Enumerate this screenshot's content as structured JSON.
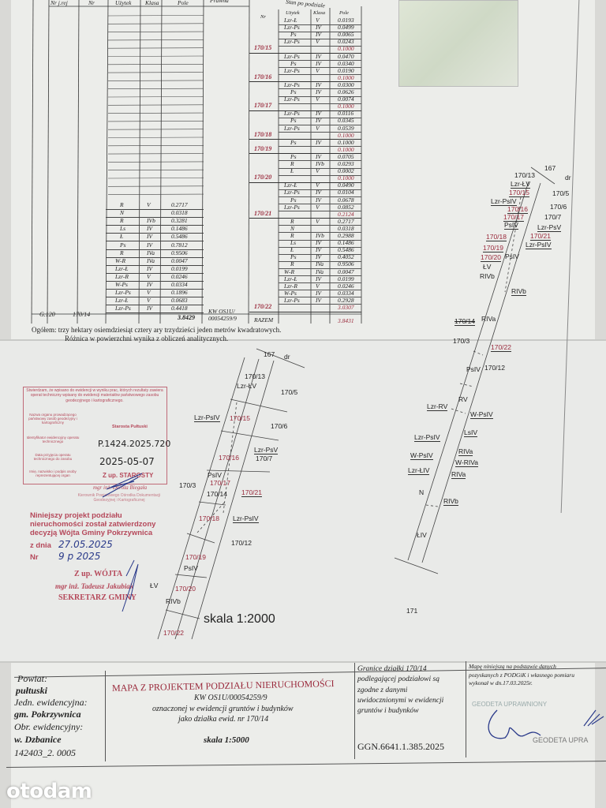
{
  "table": {
    "headers_left": [
      "Nr j.rej",
      "Nr",
      "Użytek",
      "Klasa",
      "Pole",
      "Prawna"
    ],
    "right_title": "Stan po podziale",
    "headers_right": [
      "Nr",
      "Użytek",
      "Klasa",
      "Pole"
    ],
    "before": {
      "nr_jrej": "G.120",
      "nr": "170/14",
      "prawna": "KW OS1U/ 00054259/9",
      "rows": [
        [
          "R",
          "V",
          "0.2717"
        ],
        [
          "N",
          "",
          "0.0318"
        ],
        [
          "R",
          "IVb",
          "0.3281"
        ],
        [
          "Ls",
          "IV",
          "0.1486"
        ],
        [
          "Ł",
          "IV",
          "0.5486"
        ],
        [
          "Ps",
          "IV",
          "0.7812"
        ],
        [
          "R",
          "IVa",
          "0.9506"
        ],
        [
          "W-R",
          "IVa",
          "0.0047"
        ],
        [
          "Lzr-Ł",
          "IV",
          "0.0199"
        ],
        [
          "Lzr-R",
          "V",
          "0.0246"
        ],
        [
          "W-Ps",
          "IV",
          "0.0334"
        ],
        [
          "Lzr-Ps",
          "V",
          "0.1896"
        ],
        [
          "Lzr-Ł",
          "V",
          "0.0683"
        ],
        [
          "Lzr-Ps",
          "IV",
          "0.4418"
        ]
      ],
      "total": "3.8429"
    },
    "after": {
      "groups": [
        {
          "nr": "170/15",
          "rows": [
            [
              "Lzr-Ł",
              "V",
              "0.0193"
            ],
            [
              "Lzr-Ps",
              "IV",
              "0.0499"
            ],
            [
              "Ps",
              "IV",
              "0.0065"
            ],
            [
              "Lzr-Ps",
              "V",
              "0.0243"
            ]
          ],
          "total": "0.1000"
        },
        {
          "nr": "170/16",
          "rows": [
            [
              "Lzr-Ps",
              "IV",
              "0.0470"
            ],
            [
              "Ps",
              "IV",
              "0.0340"
            ],
            [
              "Lzr-Ps",
              "V",
              "0.0190"
            ]
          ],
          "total": "0.1000"
        },
        {
          "nr": "170/17",
          "rows": [
            [
              "Lzr-Ps",
              "IV",
              "0.0300"
            ],
            [
              "Ps",
              "IV",
              "0.0626"
            ],
            [
              "Lzr-Ps",
              "V",
              "0.0074"
            ]
          ],
          "total": "0.1000"
        },
        {
          "nr": "170/18",
          "rows": [
            [
              "Lzr-Ps",
              "IV",
              "0.0116"
            ],
            [
              "Ps",
              "IV",
              "0.0345"
            ],
            [
              "Lzr-Ps",
              "V",
              "0.0539"
            ]
          ],
          "total": "0.1000"
        },
        {
          "nr": "170/19",
          "rows": [
            [
              "Ps",
              "IV",
              "0.1000"
            ]
          ],
          "total": "0.1000"
        },
        {
          "nr": "170/20",
          "rows": [
            [
              "Ps",
              "IV",
              "0.0705"
            ],
            [
              "R",
              "IVb",
              "0.0293"
            ],
            [
              "Ł",
              "V",
              "0.0002"
            ]
          ],
          "total": "0.1000"
        },
        {
          "nr": "170/21",
          "rows": [
            [
              "Lzr-Ł",
              "V",
              "0.0490"
            ],
            [
              "Lzr-Ps",
              "IV",
              "0.0104"
            ],
            [
              "Ps",
              "IV",
              "0.0678"
            ],
            [
              "Lzr-Ps",
              "V",
              "0.0852"
            ]
          ],
          "total": "0.2124"
        },
        {
          "nr": "170/22",
          "rows": [
            [
              "R",
              "V",
              "0.2717"
            ],
            [
              "N",
              "",
              "0.0318"
            ],
            [
              "R",
              "IVb",
              "0.2988"
            ],
            [
              "Ls",
              "IV",
              "0.1486"
            ],
            [
              "Ł",
              "IV",
              "0.5486"
            ],
            [
              "Ps",
              "IV",
              "0.4052"
            ],
            [
              "R",
              "IVa",
              "0.9506"
            ],
            [
              "W-R",
              "IVa",
              "0.0047"
            ],
            [
              "Lzr-Ł",
              "IV",
              "0.0199"
            ],
            [
              "Lzr-R",
              "V",
              "0.0246"
            ],
            [
              "W-Ps",
              "IV",
              "0.0334"
            ],
            [
              "Lzr-Ps",
              "IV",
              "0.2928"
            ]
          ],
          "total": "3.0307"
        }
      ],
      "razem_label": "RAZEM",
      "razem": "3.8431"
    },
    "summary_line1": "Ogółem: trzy hektary osiemdziesiąt cztery ary trzydzieści jeden metrów kwadratowych.",
    "summary_line2": "Różnica w powierzchni wynika z obliczeń analitycznych."
  },
  "map_small": {
    "scale": "skala 1:2000",
    "labels": [
      "167",
      "dr",
      "170/13",
      "Lzr-ŁV",
      "170/5",
      "Lzr-PsIV",
      "170/15",
      "170/6",
      "Lzr-PsV",
      "170/7",
      "170/16",
      "PsIV",
      "170/17",
      "170/3",
      "170/14",
      "170/21",
      "170/18",
      "Lzr-PsIV",
      "170/12",
      "170/19",
      "PsIV",
      "170/20",
      "ŁV",
      "RIVb",
      "170/22"
    ]
  },
  "map_large": {
    "labels": [
      "167",
      "dr",
      "170/13",
      "Lzr-ŁV",
      "170/15",
      "170/5",
      "Lzr-PsIV",
      "170/16",
      "170/6",
      "170/17",
      "170/7",
      "PsIV",
      "Lzr-PsV",
      "170/18",
      "170/21",
      "Lzr-PsIV",
      "170/19",
      "170/20",
      "PsIV",
      "ŁV",
      "RIVb",
      "RIVb",
      "170/14",
      "RIVa",
      "170/3",
      "170/22",
      "PsIV",
      "170/12",
      "RV",
      "Lzr-RV",
      "W-PsIV",
      "LsIV",
      "Lzr-PsIV",
      "RIVa",
      "W-PsIV",
      "W-RIVa",
      "Lzr-ŁIV",
      "RIVa",
      "N",
      "RIVb",
      "ŁIV",
      "171"
    ]
  },
  "stamp_starosta": {
    "header": "Stwierdzam, że wpisano do ewidencji w wyniku prac, których rezultaty zawiera operat techniczny wpisany do ewidencji materiałów państwowego zasobu geodezyjnego i kartograficznego.",
    "row1_label": "Nazwa organu prowadzącego państwowy zasób geodezyjny i kartograficzny",
    "row1_value": "Starosta Pułtuski",
    "row2_label": "Identyfikator ewidencyjny operatu technicznego",
    "row2_value": "P.1424.2025.720",
    "row3_label": "Data przyjęcia operatu technicznego do zasobu",
    "row3_value": "2025-05-07",
    "row4_label": "Imię, nazwisko i podpis osoby reprezentującej organ",
    "row4_value": "Z up. STAROSTY",
    "signer": "mgr inż. Dorota Biegała",
    "signer_role": "Kierownik Powiatowego Ośrodka Dokumentacji Geodezyjnej i Kartograficznej"
  },
  "stamp_wojt": {
    "line1": "Niniejszy projekt podziału",
    "line2": "nieruchomości został zatwierdzony",
    "line3": "decyzją Wójta Gminy Pokrzywnica",
    "date_label": "z dnia",
    "date_value": "27.05.2025",
    "nr_label": "Nr",
    "nr_value": "9 p 2025",
    "sig1": "Z up. WÓJTA",
    "sig2": "mgr inż. Tadeusz Jakubiak",
    "sig3": "SEKRETARZ GMINY"
  },
  "title_block": {
    "powiat_label": "Powiat:",
    "powiat": "pułtuski",
    "jedn_label": "Jedn. ewidencyjna:",
    "jedn": "gm. Pokrzywnica",
    "obr_label": "Obr. ewidencyjny:",
    "obr": "w. Dzbanice",
    "code": "142403_2. 0005",
    "title": "MAPA Z PROJEKTEM PODZIAŁU NIERUCHOMOŚCI",
    "kw": "KW OS1U/00054259/9",
    "desc1": "oznaczonej w ewidencji gruntów i budynków",
    "desc2": "jako działka ewid. nr 170/14",
    "scale": "skala 1:5000",
    "granice": [
      "Granice działki 170/14",
      "podlegającej podziałowi są",
      "zgodne z danymi",
      "uwidocznionymi w ewidencji",
      "gruntów i budynków"
    ],
    "ggn": "GGN.6641.1.385.2025",
    "mape": [
      "Mapę niniejszą na podstawie danych",
      "pozyskanych z PODGiK i własnego pomiaru",
      "wykonał  w dn.17.03.2025r."
    ],
    "geodeta_stamp": "GEODETA UPRAWNIONY",
    "geodeta_stamp2": "GEODETA UPRA"
  },
  "watermark": "otodam",
  "colors": {
    "red_ink": "#9a2a3c",
    "stamp_red": "#b5485a",
    "pen_blue": "#2a3a8a",
    "paper": "#ecedea"
  }
}
